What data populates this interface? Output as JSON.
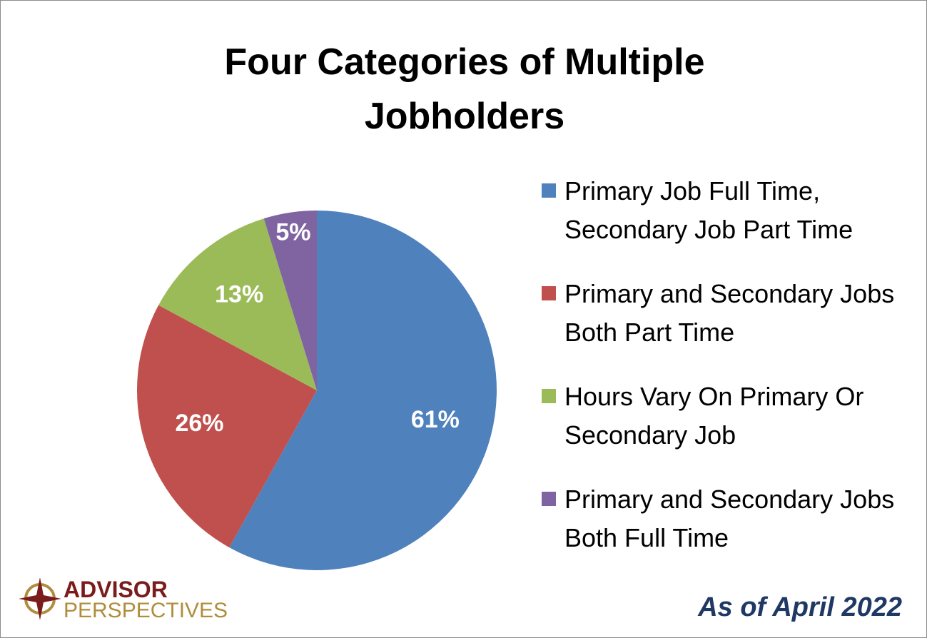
{
  "chart_data": {
    "type": "pie",
    "title": "Four Categories of Multiple Jobholders",
    "categories": [
      "Primary Job Full Time, Secondary Job Part Time",
      "Primary and Secondary Jobs Both Part Time",
      "Hours Vary On Primary Or Secondary Job",
      "Primary and Secondary Jobs Both Full Time"
    ],
    "values": [
      61,
      26,
      13,
      5
    ],
    "value_labels": [
      "61%",
      "26%",
      "13%",
      "5%"
    ],
    "colors": [
      "#4f81bd",
      "#c0504d",
      "#9bbb59",
      "#8064a2"
    ],
    "legend": "right",
    "note": "As of April 2022"
  },
  "logo": {
    "line1": "ADVISOR",
    "line2": "PERSPECTIVES"
  }
}
